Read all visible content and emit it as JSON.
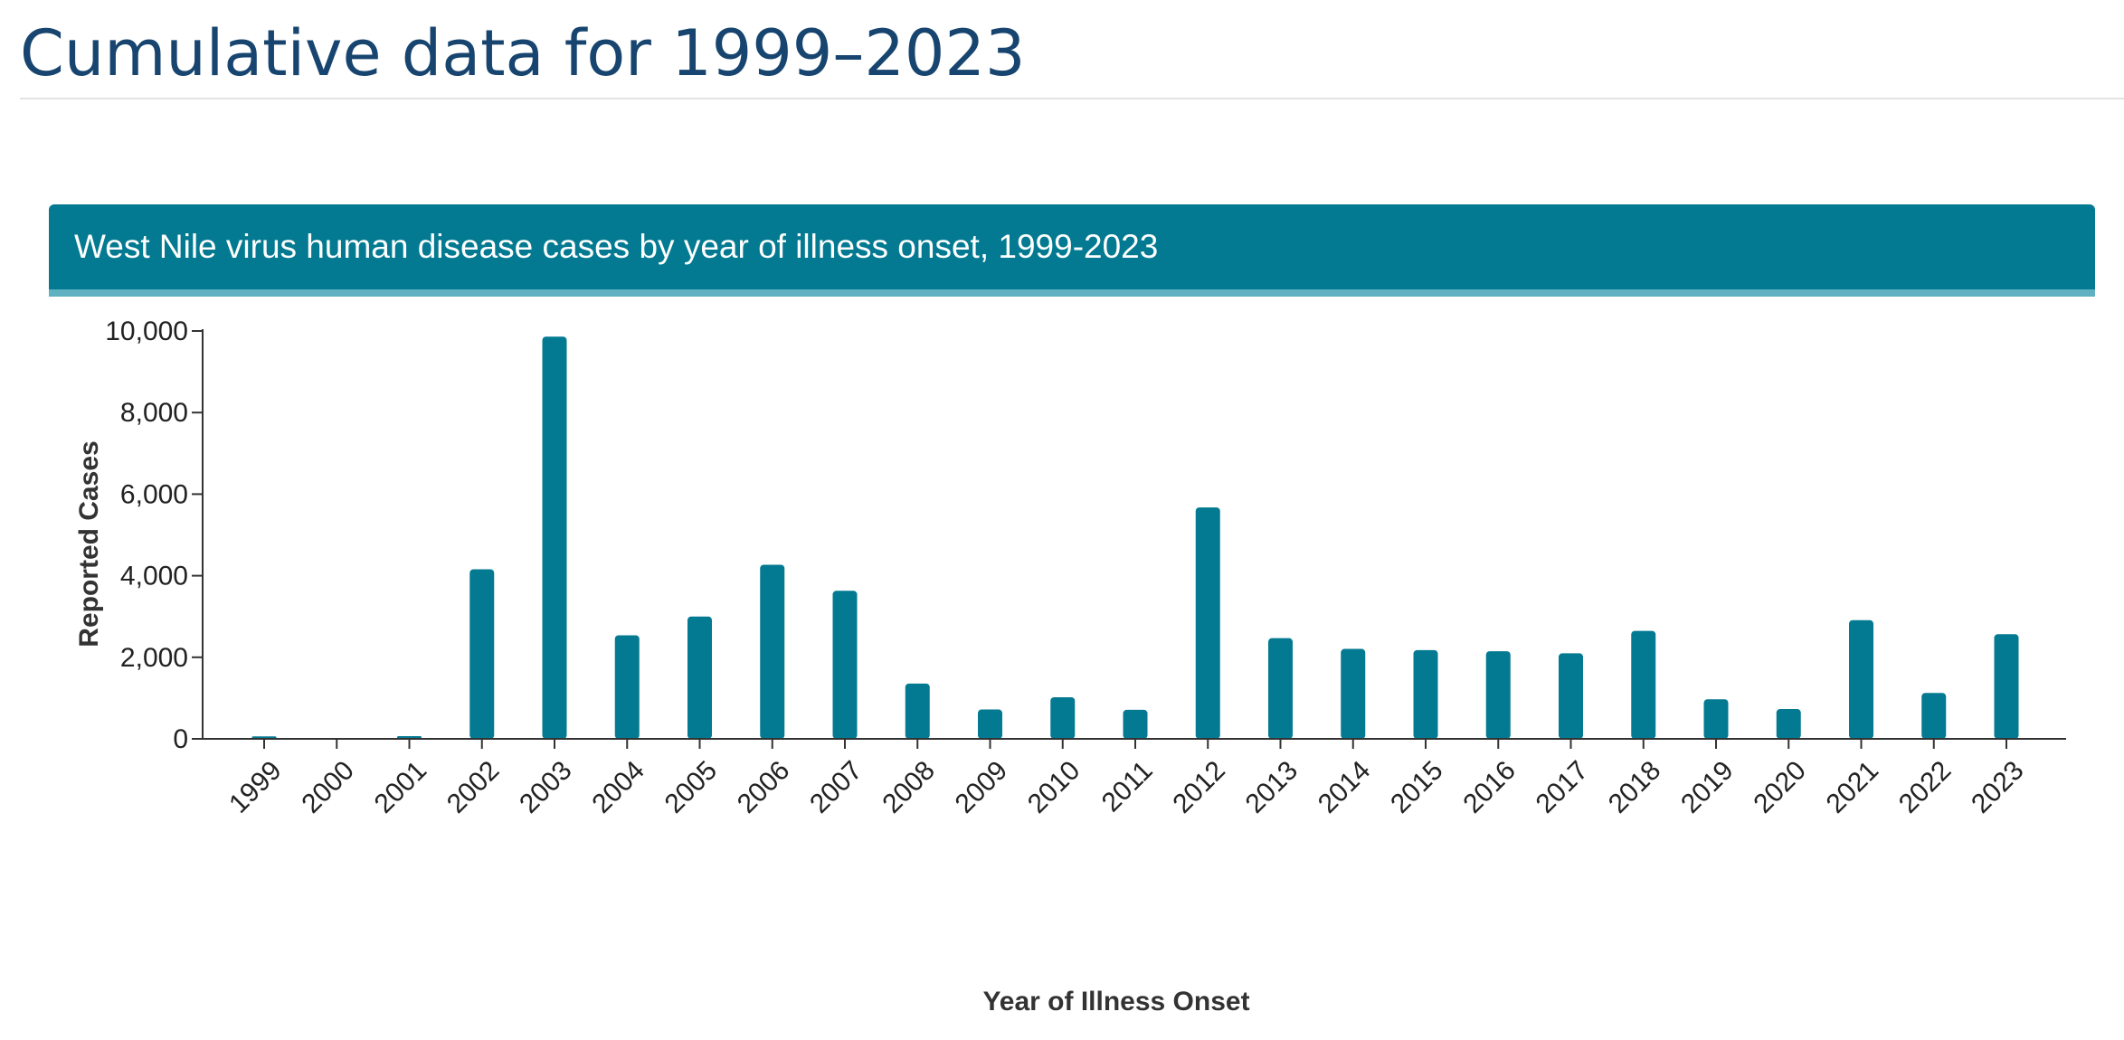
{
  "page": {
    "title": "Cumulative data for 1999–2023"
  },
  "colors": {
    "title": "#17456f",
    "header_bg": "#037a91",
    "header_accent": "#5fb0c0",
    "bar": "#037a91",
    "axis": "#333333"
  },
  "chart_data": {
    "type": "bar",
    "title": "West Nile virus human disease cases by year of illness onset, 1999-2023",
    "xlabel": "Year of Illness Onset",
    "ylabel": "Reported Cases",
    "ylim": [
      0,
      10000
    ],
    "yticks": [
      0,
      2000,
      4000,
      6000,
      8000,
      10000
    ],
    "ytick_labels": [
      "0",
      "2,000",
      "4,000",
      "6,000",
      "8,000",
      "10,000"
    ],
    "grid": false,
    "categories": [
      "1999",
      "2000",
      "2001",
      "2002",
      "2003",
      "2004",
      "2005",
      "2006",
      "2007",
      "2008",
      "2009",
      "2010",
      "2011",
      "2012",
      "2013",
      "2014",
      "2015",
      "2016",
      "2017",
      "2018",
      "2019",
      "2020",
      "2021",
      "2022",
      "2023"
    ],
    "values": [
      62,
      21,
      66,
      4156,
      9862,
      2539,
      3000,
      4269,
      3630,
      1356,
      720,
      1021,
      712,
      5674,
      2469,
      2205,
      2175,
      2149,
      2097,
      2647,
      971,
      731,
      2911,
      1126,
      2566
    ]
  }
}
